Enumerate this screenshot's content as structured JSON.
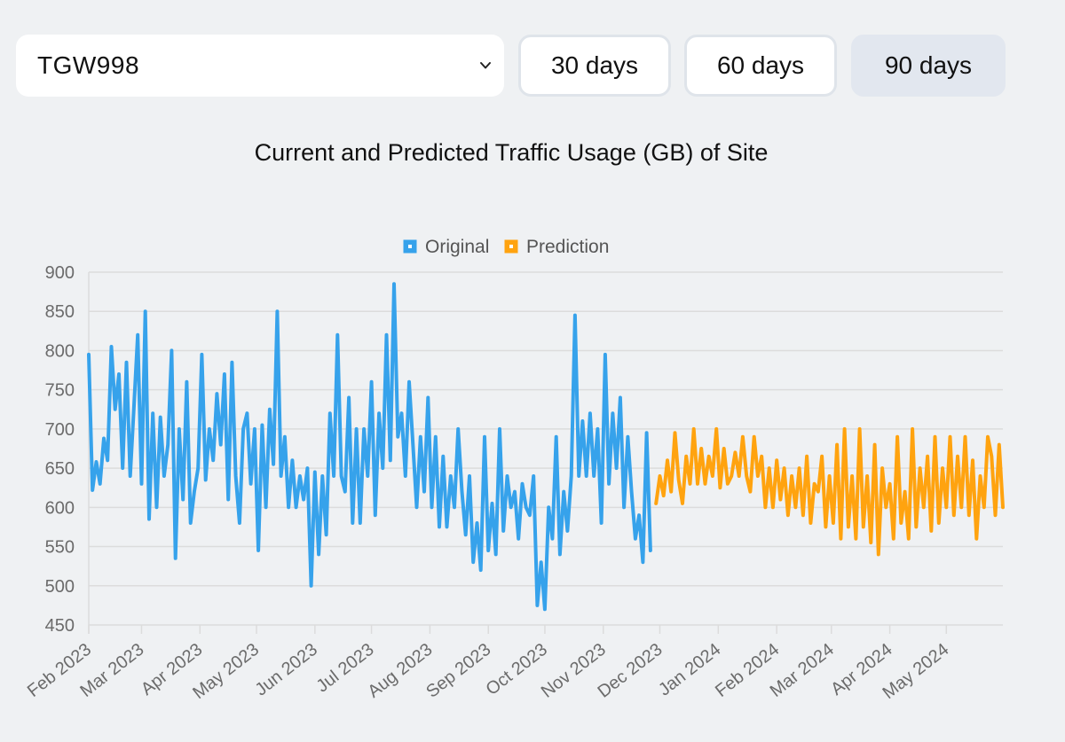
{
  "controls": {
    "site": "TGW998",
    "ranges": [
      "30 days",
      "60 days",
      "90 days"
    ],
    "active_range": "90 days"
  },
  "chart_data": {
    "type": "line",
    "title": "Current and Predicted Traffic Usage (GB) of Site",
    "ylim": [
      450,
      900
    ],
    "yticks": [
      450,
      500,
      550,
      600,
      650,
      700,
      750,
      800,
      850,
      900
    ],
    "x_start": "2023-02-01",
    "x_end": "2024-05-31",
    "x_tick_labels": [
      "Feb 2023",
      "Mar 2023",
      "Apr 2023",
      "May 2023",
      "Jun 2023",
      "Jul 2023",
      "Aug 2023",
      "Sep 2023",
      "Oct 2023",
      "Nov 2023",
      "Dec 2023",
      "Jan 2024",
      "Feb 2024",
      "Mar 2024",
      "Apr 2024",
      "May 2024"
    ],
    "x_tick_dates": [
      "2023-02-01",
      "2023-03-01",
      "2023-04-01",
      "2023-05-01",
      "2023-06-01",
      "2023-07-01",
      "2023-08-01",
      "2023-09-01",
      "2023-10-01",
      "2023-11-01",
      "2023-12-01",
      "2024-01-01",
      "2024-02-01",
      "2024-03-01",
      "2024-04-01",
      "2024-05-01"
    ],
    "grid": true,
    "legend_position": "top-center",
    "series": [
      {
        "name": "Original",
        "color": "#36a2eb",
        "points": [
          [
            "2023-02-01",
            795
          ],
          [
            "2023-02-03",
            622
          ],
          [
            "2023-02-05",
            658
          ],
          [
            "2023-02-07",
            630
          ],
          [
            "2023-02-09",
            688
          ],
          [
            "2023-02-11",
            660
          ],
          [
            "2023-02-13",
            805
          ],
          [
            "2023-02-15",
            725
          ],
          [
            "2023-02-17",
            770
          ],
          [
            "2023-02-19",
            650
          ],
          [
            "2023-02-21",
            785
          ],
          [
            "2023-02-23",
            640
          ],
          [
            "2023-02-25",
            730
          ],
          [
            "2023-02-27",
            820
          ],
          [
            "2023-03-01",
            630
          ],
          [
            "2023-03-03",
            850
          ],
          [
            "2023-03-05",
            585
          ],
          [
            "2023-03-07",
            720
          ],
          [
            "2023-03-09",
            600
          ],
          [
            "2023-03-11",
            715
          ],
          [
            "2023-03-13",
            640
          ],
          [
            "2023-03-15",
            680
          ],
          [
            "2023-03-17",
            800
          ],
          [
            "2023-03-19",
            535
          ],
          [
            "2023-03-21",
            700
          ],
          [
            "2023-03-23",
            610
          ],
          [
            "2023-03-25",
            760
          ],
          [
            "2023-03-27",
            580
          ],
          [
            "2023-03-29",
            620
          ],
          [
            "2023-03-31",
            650
          ],
          [
            "2023-04-02",
            795
          ],
          [
            "2023-04-04",
            635
          ],
          [
            "2023-04-06",
            700
          ],
          [
            "2023-04-08",
            660
          ],
          [
            "2023-04-10",
            745
          ],
          [
            "2023-04-12",
            680
          ],
          [
            "2023-04-14",
            770
          ],
          [
            "2023-04-16",
            610
          ],
          [
            "2023-04-18",
            785
          ],
          [
            "2023-04-20",
            640
          ],
          [
            "2023-04-22",
            580
          ],
          [
            "2023-04-24",
            700
          ],
          [
            "2023-04-26",
            720
          ],
          [
            "2023-04-28",
            630
          ],
          [
            "2023-04-30",
            700
          ],
          [
            "2023-05-02",
            545
          ],
          [
            "2023-05-04",
            705
          ],
          [
            "2023-05-06",
            600
          ],
          [
            "2023-05-08",
            725
          ],
          [
            "2023-05-10",
            655
          ],
          [
            "2023-05-12",
            850
          ],
          [
            "2023-05-14",
            640
          ],
          [
            "2023-05-16",
            690
          ],
          [
            "2023-05-18",
            600
          ],
          [
            "2023-05-20",
            660
          ],
          [
            "2023-05-22",
            600
          ],
          [
            "2023-05-24",
            640
          ],
          [
            "2023-05-26",
            610
          ],
          [
            "2023-05-28",
            650
          ],
          [
            "2023-05-30",
            500
          ],
          [
            "2023-06-01",
            645
          ],
          [
            "2023-06-03",
            540
          ],
          [
            "2023-06-05",
            640
          ],
          [
            "2023-06-07",
            565
          ],
          [
            "2023-06-09",
            720
          ],
          [
            "2023-06-11",
            640
          ],
          [
            "2023-06-13",
            820
          ],
          [
            "2023-06-15",
            640
          ],
          [
            "2023-06-17",
            620
          ],
          [
            "2023-06-19",
            740
          ],
          [
            "2023-06-21",
            580
          ],
          [
            "2023-06-23",
            700
          ],
          [
            "2023-06-25",
            580
          ],
          [
            "2023-06-27",
            700
          ],
          [
            "2023-06-29",
            640
          ],
          [
            "2023-07-01",
            760
          ],
          [
            "2023-07-03",
            590
          ],
          [
            "2023-07-05",
            720
          ],
          [
            "2023-07-07",
            650
          ],
          [
            "2023-07-09",
            820
          ],
          [
            "2023-07-11",
            660
          ],
          [
            "2023-07-13",
            885
          ],
          [
            "2023-07-15",
            690
          ],
          [
            "2023-07-17",
            720
          ],
          [
            "2023-07-19",
            640
          ],
          [
            "2023-07-21",
            760
          ],
          [
            "2023-07-23",
            680
          ],
          [
            "2023-07-25",
            600
          ],
          [
            "2023-07-27",
            690
          ],
          [
            "2023-07-29",
            620
          ],
          [
            "2023-07-31",
            740
          ],
          [
            "2023-08-02",
            600
          ],
          [
            "2023-08-04",
            690
          ],
          [
            "2023-08-06",
            575
          ],
          [
            "2023-08-08",
            665
          ],
          [
            "2023-08-10",
            575
          ],
          [
            "2023-08-12",
            640
          ],
          [
            "2023-08-14",
            600
          ],
          [
            "2023-08-16",
            700
          ],
          [
            "2023-08-18",
            620
          ],
          [
            "2023-08-20",
            565
          ],
          [
            "2023-08-22",
            640
          ],
          [
            "2023-08-24",
            530
          ],
          [
            "2023-08-26",
            580
          ],
          [
            "2023-08-28",
            520
          ],
          [
            "2023-08-30",
            690
          ],
          [
            "2023-09-01",
            545
          ],
          [
            "2023-09-03",
            605
          ],
          [
            "2023-09-05",
            540
          ],
          [
            "2023-09-07",
            700
          ],
          [
            "2023-09-09",
            570
          ],
          [
            "2023-09-11",
            640
          ],
          [
            "2023-09-13",
            600
          ],
          [
            "2023-09-15",
            620
          ],
          [
            "2023-09-17",
            560
          ],
          [
            "2023-09-19",
            630
          ],
          [
            "2023-09-21",
            600
          ],
          [
            "2023-09-23",
            590
          ],
          [
            "2023-09-25",
            640
          ],
          [
            "2023-09-27",
            475
          ],
          [
            "2023-09-29",
            530
          ],
          [
            "2023-10-01",
            470
          ],
          [
            "2023-10-03",
            600
          ],
          [
            "2023-10-05",
            560
          ],
          [
            "2023-10-07",
            690
          ],
          [
            "2023-10-09",
            540
          ],
          [
            "2023-10-11",
            620
          ],
          [
            "2023-10-13",
            570
          ],
          [
            "2023-10-15",
            640
          ],
          [
            "2023-10-17",
            845
          ],
          [
            "2023-10-19",
            640
          ],
          [
            "2023-10-21",
            710
          ],
          [
            "2023-10-23",
            640
          ],
          [
            "2023-10-25",
            720
          ],
          [
            "2023-10-27",
            640
          ],
          [
            "2023-10-29",
            700
          ],
          [
            "2023-10-31",
            580
          ],
          [
            "2023-11-02",
            795
          ],
          [
            "2023-11-04",
            630
          ],
          [
            "2023-11-06",
            720
          ],
          [
            "2023-11-08",
            650
          ],
          [
            "2023-11-10",
            740
          ],
          [
            "2023-11-12",
            600
          ],
          [
            "2023-11-14",
            690
          ],
          [
            "2023-11-16",
            620
          ],
          [
            "2023-11-18",
            560
          ],
          [
            "2023-11-20",
            590
          ],
          [
            "2023-11-22",
            530
          ],
          [
            "2023-11-24",
            695
          ],
          [
            "2023-11-26",
            545
          ]
        ]
      },
      {
        "name": "Prediction",
        "color": "#ffa30f",
        "points": [
          [
            "2023-11-29",
            605
          ],
          [
            "2023-12-01",
            640
          ],
          [
            "2023-12-03",
            615
          ],
          [
            "2023-12-05",
            660
          ],
          [
            "2023-12-07",
            620
          ],
          [
            "2023-12-09",
            695
          ],
          [
            "2023-12-11",
            635
          ],
          [
            "2023-12-13",
            605
          ],
          [
            "2023-12-15",
            665
          ],
          [
            "2023-12-17",
            630
          ],
          [
            "2023-12-19",
            700
          ],
          [
            "2023-12-21",
            630
          ],
          [
            "2023-12-23",
            675
          ],
          [
            "2023-12-25",
            630
          ],
          [
            "2023-12-27",
            665
          ],
          [
            "2023-12-29",
            640
          ],
          [
            "2023-12-31",
            700
          ],
          [
            "2024-01-02",
            625
          ],
          [
            "2024-01-04",
            675
          ],
          [
            "2024-01-06",
            630
          ],
          [
            "2024-01-08",
            640
          ],
          [
            "2024-01-10",
            670
          ],
          [
            "2024-01-12",
            640
          ],
          [
            "2024-01-14",
            690
          ],
          [
            "2024-01-16",
            640
          ],
          [
            "2024-01-18",
            620
          ],
          [
            "2024-01-20",
            690
          ],
          [
            "2024-01-22",
            640
          ],
          [
            "2024-01-24",
            665
          ],
          [
            "2024-01-26",
            600
          ],
          [
            "2024-01-28",
            650
          ],
          [
            "2024-01-30",
            600
          ],
          [
            "2024-02-01",
            660
          ],
          [
            "2024-02-03",
            610
          ],
          [
            "2024-02-05",
            650
          ],
          [
            "2024-02-07",
            590
          ],
          [
            "2024-02-09",
            640
          ],
          [
            "2024-02-11",
            600
          ],
          [
            "2024-02-13",
            650
          ],
          [
            "2024-02-15",
            590
          ],
          [
            "2024-02-17",
            665
          ],
          [
            "2024-02-19",
            580
          ],
          [
            "2024-02-21",
            630
          ],
          [
            "2024-02-23",
            620
          ],
          [
            "2024-02-25",
            665
          ],
          [
            "2024-02-27",
            575
          ],
          [
            "2024-02-29",
            640
          ],
          [
            "2024-03-02",
            580
          ],
          [
            "2024-03-04",
            680
          ],
          [
            "2024-03-06",
            560
          ],
          [
            "2024-03-08",
            700
          ],
          [
            "2024-03-10",
            575
          ],
          [
            "2024-03-12",
            640
          ],
          [
            "2024-03-14",
            560
          ],
          [
            "2024-03-16",
            700
          ],
          [
            "2024-03-18",
            575
          ],
          [
            "2024-03-20",
            640
          ],
          [
            "2024-03-22",
            555
          ],
          [
            "2024-03-24",
            680
          ],
          [
            "2024-03-26",
            540
          ],
          [
            "2024-03-28",
            650
          ],
          [
            "2024-03-30",
            600
          ],
          [
            "2024-04-01",
            630
          ],
          [
            "2024-04-03",
            560
          ],
          [
            "2024-04-05",
            690
          ],
          [
            "2024-04-07",
            580
          ],
          [
            "2024-04-09",
            620
          ],
          [
            "2024-04-11",
            560
          ],
          [
            "2024-04-13",
            700
          ],
          [
            "2024-04-15",
            575
          ],
          [
            "2024-04-17",
            650
          ],
          [
            "2024-04-19",
            600
          ],
          [
            "2024-04-21",
            665
          ],
          [
            "2024-04-23",
            570
          ],
          [
            "2024-04-25",
            690
          ],
          [
            "2024-04-27",
            580
          ],
          [
            "2024-04-29",
            650
          ],
          [
            "2024-05-01",
            600
          ],
          [
            "2024-05-03",
            690
          ],
          [
            "2024-05-05",
            590
          ],
          [
            "2024-05-07",
            665
          ],
          [
            "2024-05-09",
            600
          ],
          [
            "2024-05-11",
            690
          ],
          [
            "2024-05-13",
            590
          ],
          [
            "2024-05-15",
            660
          ],
          [
            "2024-05-17",
            560
          ],
          [
            "2024-05-19",
            640
          ],
          [
            "2024-05-21",
            600
          ],
          [
            "2024-05-23",
            690
          ],
          [
            "2024-05-25",
            665
          ],
          [
            "2024-05-27",
            590
          ],
          [
            "2024-05-29",
            680
          ],
          [
            "2024-05-31",
            600
          ]
        ]
      }
    ]
  }
}
